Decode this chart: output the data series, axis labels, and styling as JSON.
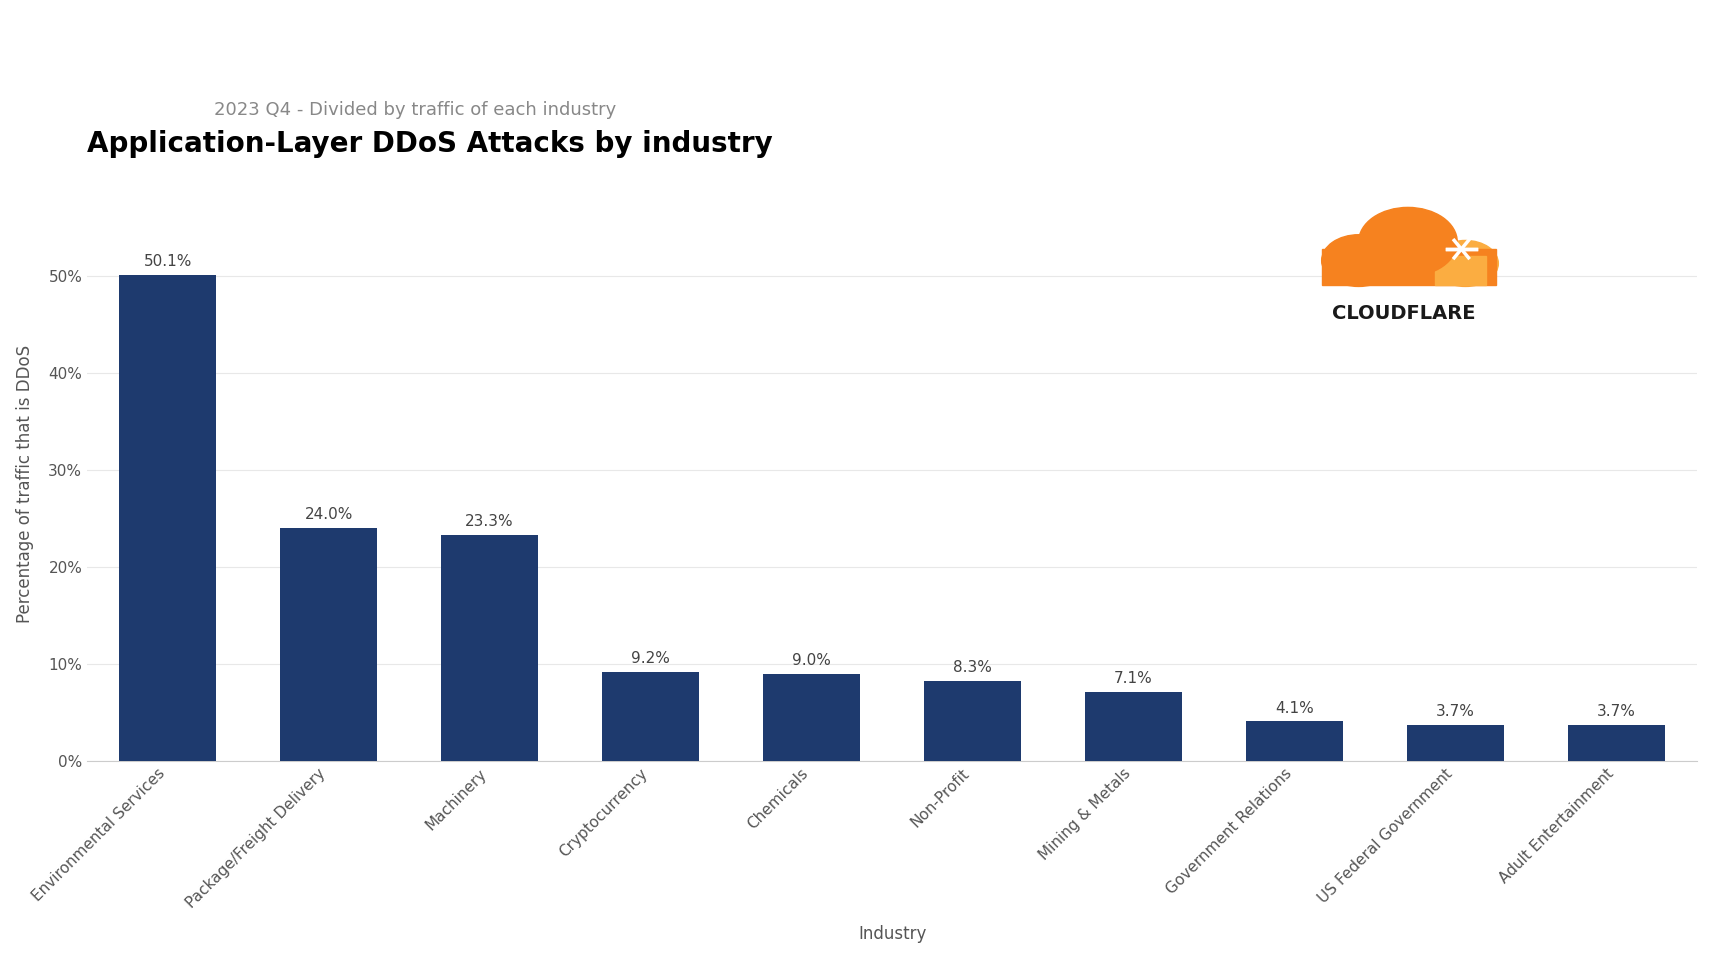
{
  "title": "Application-Layer DDoS Attacks by industry",
  "subtitle": "2023 Q4 - Divided by traffic of each industry",
  "categories": [
    "Environmental Services",
    "Package/Freight Delivery",
    "Machinery",
    "Cryptocurrency",
    "Chemicals",
    "Non-Profit",
    "Mining & Metals",
    "Government Relations",
    "US Federal Government",
    "Adult Entertainment"
  ],
  "values": [
    50.1,
    24.0,
    23.3,
    9.2,
    9.0,
    8.3,
    7.1,
    4.1,
    3.7,
    3.7
  ],
  "bar_color": "#1e3a6e",
  "ylabel": "Percentage of traffic that is DDoS",
  "xlabel": "Industry",
  "ylim": [
    0,
    57
  ],
  "yticks": [
    0,
    10,
    20,
    30,
    40,
    50
  ],
  "ytick_labels": [
    "0%",
    "10%",
    "20%",
    "30%",
    "40%",
    "50%"
  ],
  "background_color": "#ffffff",
  "grid_color": "#e8e8e8",
  "title_fontsize": 20,
  "subtitle_fontsize": 13,
  "label_fontsize": 12,
  "tick_fontsize": 11,
  "bar_label_fontsize": 11,
  "cloudflare_text": "CLOUDFLARE",
  "cloudflare_text_color": "#1a1a1a",
  "cloud_color_main": "#F6821F",
  "cloud_color_light": "#FBAD41"
}
